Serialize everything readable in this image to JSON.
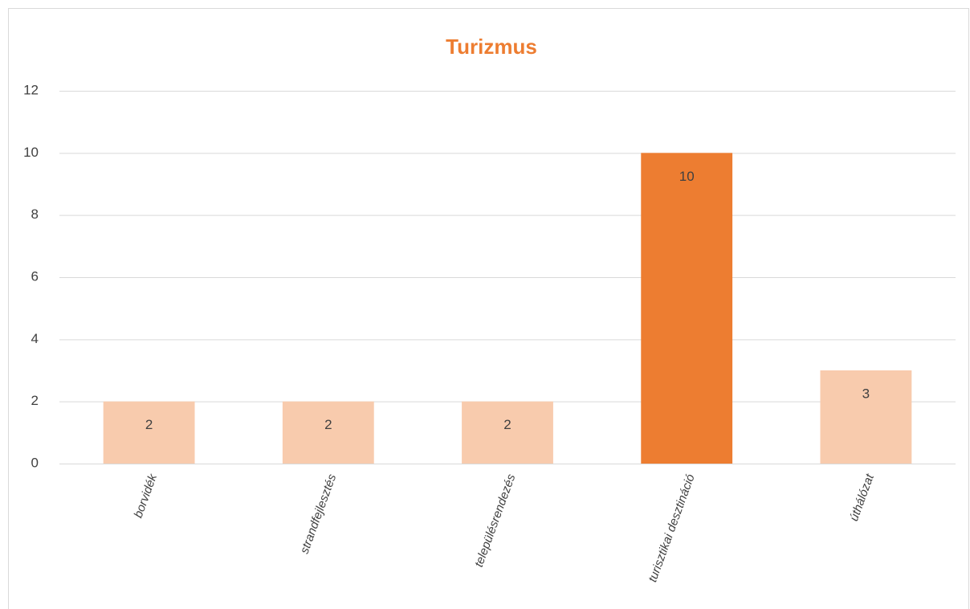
{
  "chart_data": {
    "type": "bar",
    "title": "Turizmus",
    "categories": [
      "borvidék",
      "strandfejlesztés",
      "településrendezés",
      "turisztikai desztináció",
      "úthálózat"
    ],
    "values": [
      2,
      2,
      2,
      10,
      3
    ],
    "colors": [
      "#f8cbad",
      "#f8cbad",
      "#f8cbad",
      "#ed7d31",
      "#f8cbad"
    ],
    "ylim": [
      0,
      12
    ],
    "yticks": [
      0,
      2,
      4,
      6,
      8,
      10,
      12
    ],
    "grid": true
  }
}
